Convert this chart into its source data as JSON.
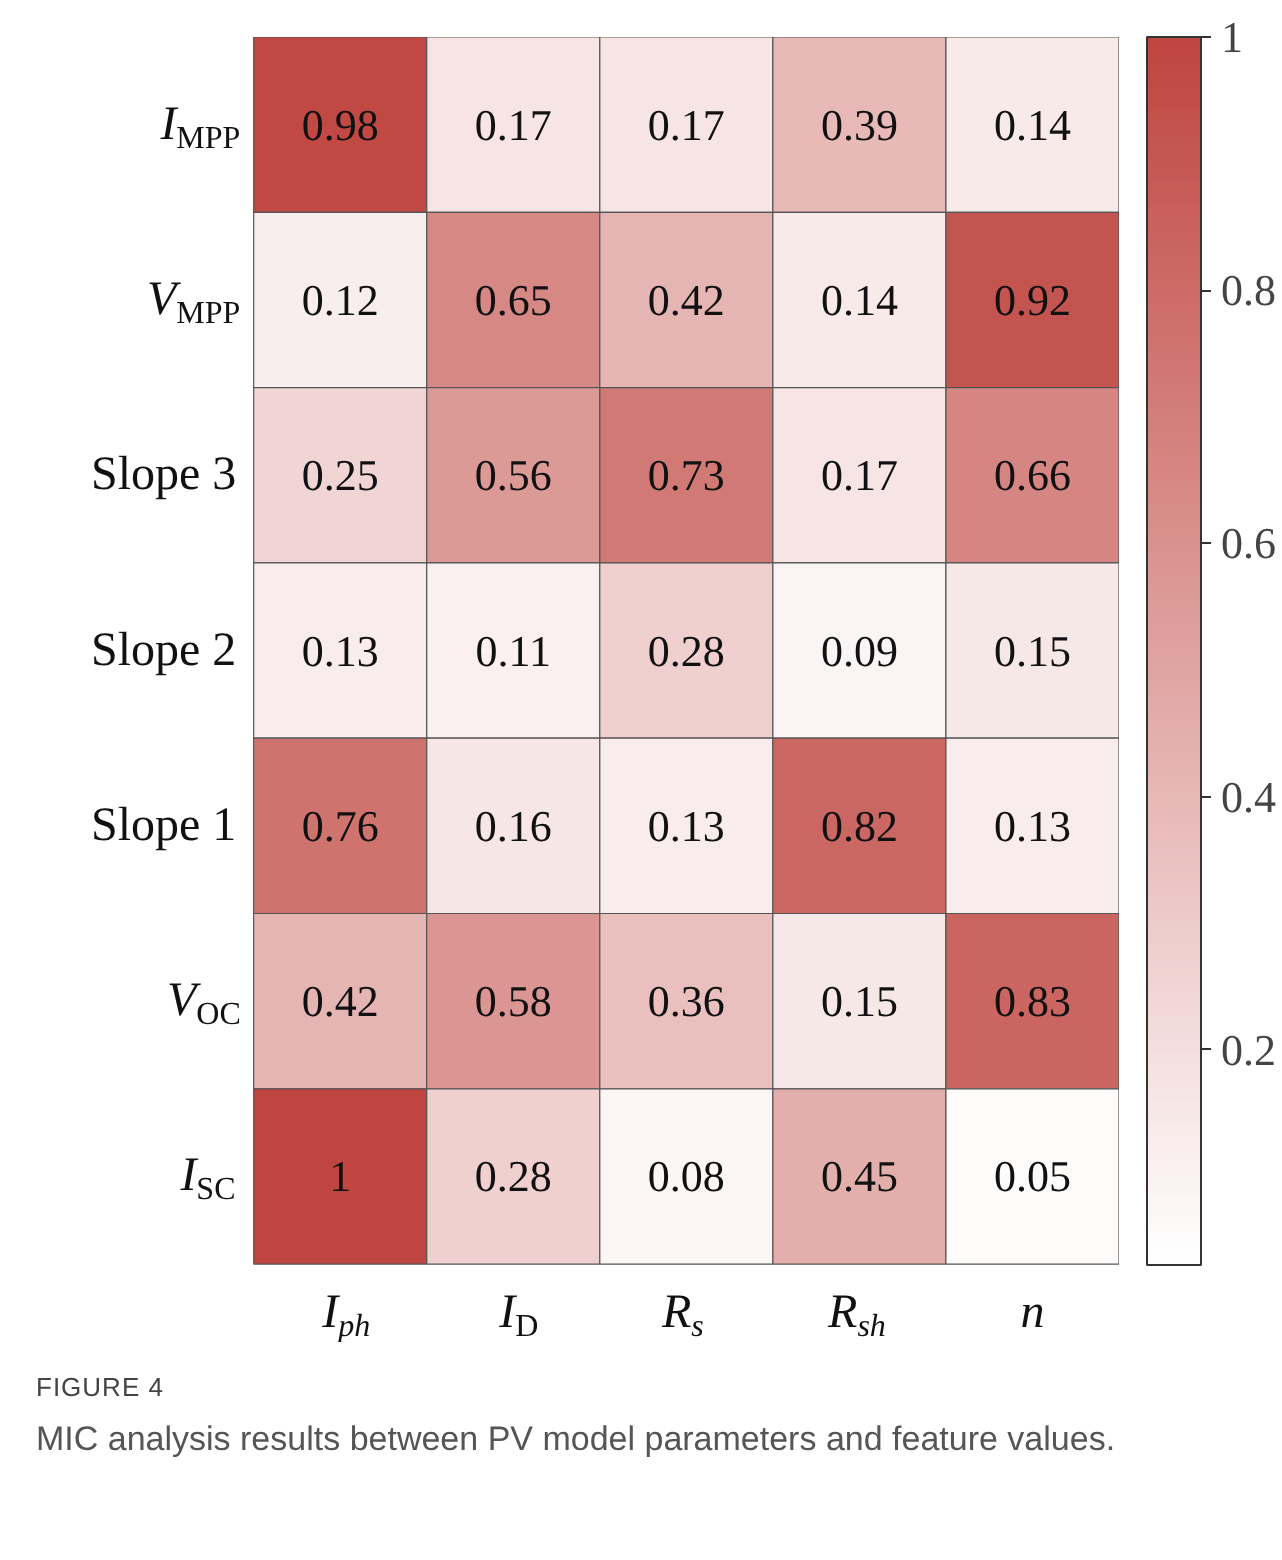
{
  "chart_data": {
    "type": "heatmap",
    "categories": [
      "I$_{ph}$",
      "I$_{D}$",
      "R$_{s}$",
      "R$_{sh}$",
      "n"
    ],
    "y_categories": [
      "I$_{MPP}$",
      "V$_{MPP}$",
      "Slope 3",
      "Slope 2",
      "Slope 1",
      "V$_{OC}$",
      "I$_{SC}$"
    ],
    "cells": [
      [
        0.98,
        0.17,
        0.17,
        0.39,
        0.14
      ],
      [
        0.12,
        0.65,
        0.42,
        0.14,
        0.92
      ],
      [
        0.25,
        0.56,
        0.73,
        0.17,
        0.66
      ],
      [
        0.13,
        0.11,
        0.28,
        0.09,
        0.15
      ],
      [
        0.76,
        0.16,
        0.13,
        0.82,
        0.13
      ],
      [
        0.42,
        0.58,
        0.36,
        0.15,
        0.83
      ],
      [
        1,
        0.28,
        0.08,
        0.45,
        0.05
      ]
    ],
    "data_labels": true,
    "clim": [
      0.03,
      1
    ],
    "cticks": [
      0.2,
      0.4,
      0.6,
      0.8,
      1
    ],
    "colors": [
      "#ffffff",
      "#bf4540"
    ],
    "annotations": [
      "FIGURE 4",
      "MIC analysis results between PV model parameters and feature values."
    ]
  }
}
